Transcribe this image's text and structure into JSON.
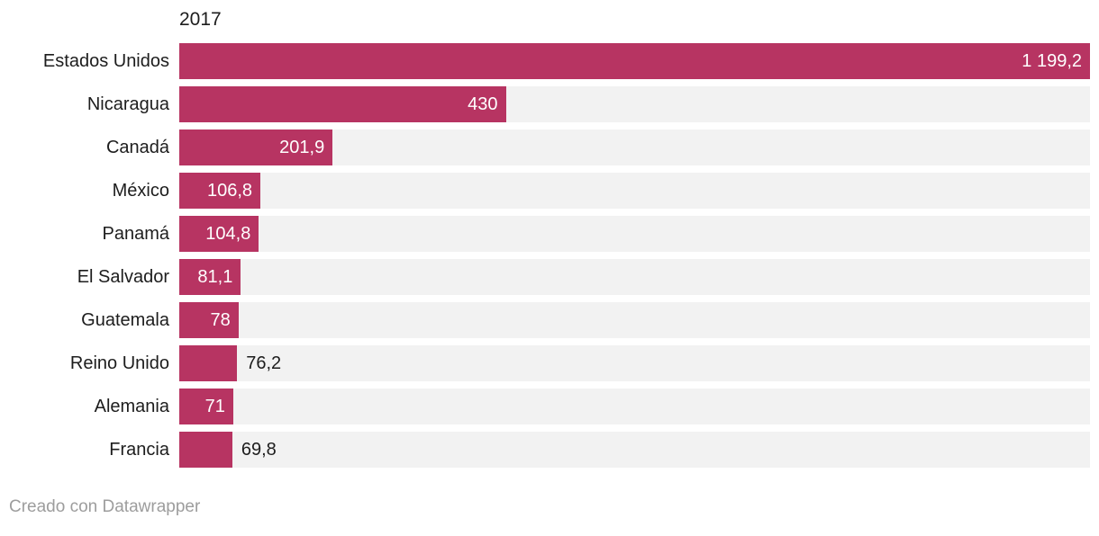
{
  "chart": {
    "year_label": "2017",
    "footer_credit": "Creado con Datawrapper"
  },
  "colors": {
    "bar": "#b73462",
    "track": "#f2f2f2",
    "label_text": "#1d1d1d",
    "value_inside_text": "#ffffff",
    "footer_text": "#9d9d9d"
  },
  "chart_data": {
    "type": "bar",
    "orientation": "horizontal",
    "title": "2017",
    "xlabel": "",
    "ylabel": "",
    "xlim": [
      0,
      1199.2
    ],
    "grid": false,
    "legend": "none",
    "categories": [
      "Estados Unidos",
      "Nicaragua",
      "Canadá",
      "México",
      "Panamá",
      "El Salvador",
      "Guatemala",
      "Reino Unido",
      "Alemania",
      "Francia"
    ],
    "values": [
      1199.2,
      430,
      201.9,
      106.8,
      104.8,
      81.1,
      78,
      76.2,
      71,
      69.8
    ],
    "value_labels": [
      "1 199,2",
      "430",
      "201,9",
      "106,8",
      "104,8",
      "81,1",
      "78",
      "76,2",
      "71",
      "69,8"
    ],
    "value_label_inside_bar": [
      true,
      true,
      true,
      true,
      true,
      true,
      true,
      false,
      true,
      false
    ],
    "footer": "Creado con Datawrapper"
  }
}
